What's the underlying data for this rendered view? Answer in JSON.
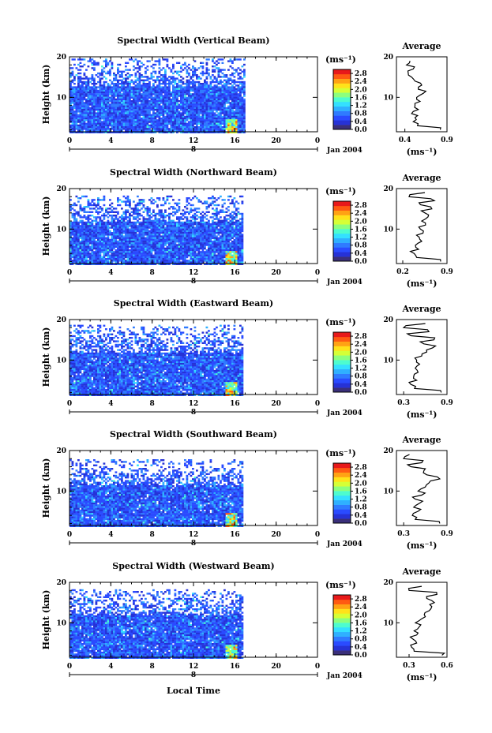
{
  "figure": {
    "xlabel": "Local Time",
    "date_label": "Jan 2004",
    "day_marker": "8"
  },
  "colors": {
    "scale": [
      "#3a2f7a",
      "#2632d6",
      "#2a4bff",
      "#2f7bff",
      "#2fb0ff",
      "#34e0ff",
      "#4dfccf",
      "#8cff7e",
      "#d6ff36",
      "#ffe21a",
      "#ffa214",
      "#ff5a12",
      "#e8191a"
    ],
    "profile_line": "#000000"
  },
  "chart_data": [
    {
      "type": "heatmap",
      "title": "Spectral Width (Vertical Beam)",
      "ylabel": "Height (km)",
      "xlim": [
        0,
        24
      ],
      "ylim": [
        1.5,
        20
      ],
      "xticks": [
        "0",
        "4",
        "8",
        "12",
        "16",
        "20",
        "0"
      ],
      "yticks": [
        "20",
        "10"
      ],
      "data_end_hour": 16.9,
      "echo_top_km": 19.8,
      "colorbar": {
        "unit": "(ms⁻¹)",
        "ticks": [
          "2.8",
          "2.4",
          "2.0",
          "1.6",
          "1.2",
          "0.8",
          "0.4",
          "0.0"
        ],
        "range": [
          0,
          3.0
        ]
      },
      "profile": {
        "title": "Average",
        "xlabel": "(ms⁻¹)",
        "xlim": [
          0.3,
          0.9
        ],
        "xticks": [
          "0.4",
          "0.9"
        ],
        "yticks": [
          "20",
          "10"
        ],
        "heights": [
          2,
          3,
          4,
          5,
          6,
          7,
          8,
          9,
          10,
          11,
          12,
          13,
          14,
          15,
          16,
          17,
          18,
          19
        ],
        "values": [
          0.82,
          0.55,
          0.5,
          0.52,
          0.48,
          0.56,
          0.52,
          0.58,
          0.54,
          0.62,
          0.56,
          0.6,
          0.52,
          0.48,
          0.44,
          0.5,
          0.42,
          0.46
        ]
      }
    },
    {
      "type": "heatmap",
      "title": "Spectral Width (Northward Beam)",
      "ylabel": "Height (km)",
      "xlim": [
        0,
        24
      ],
      "ylim": [
        1.5,
        20
      ],
      "xticks": [
        "0",
        "4",
        "8",
        "12",
        "16",
        "20",
        "0"
      ],
      "yticks": [
        "20",
        "10"
      ],
      "data_end_hour": 16.8,
      "echo_top_km": 18.5,
      "colorbar": {
        "unit": "(ms⁻¹)",
        "ticks": [
          "2.8",
          "2.4",
          "2.0",
          "1.6",
          "1.2",
          "0.8",
          "0.4",
          "0.0"
        ],
        "range": [
          0,
          3.0
        ]
      },
      "profile": {
        "title": "Average",
        "xlabel": "(ms⁻¹)",
        "xlim": [
          0.1,
          0.9
        ],
        "xticks": [
          "0.2",
          "0.9"
        ],
        "yticks": [
          "20",
          "10"
        ],
        "heights": [
          2,
          3,
          4,
          5,
          6,
          7,
          8,
          9,
          10,
          11,
          12,
          13,
          14,
          15,
          16,
          17,
          18,
          19
        ],
        "values": [
          0.8,
          0.42,
          0.38,
          0.45,
          0.4,
          0.5,
          0.46,
          0.52,
          0.48,
          0.56,
          0.5,
          0.6,
          0.55,
          0.66,
          0.48,
          0.7,
          0.3,
          0.55
        ]
      }
    },
    {
      "type": "heatmap",
      "title": "Spectral Width (Eastward Beam)",
      "ylabel": "Height (km)",
      "xlim": [
        0,
        24
      ],
      "ylim": [
        1.5,
        20
      ],
      "xticks": [
        "0",
        "4",
        "8",
        "12",
        "16",
        "20",
        "0"
      ],
      "yticks": [
        "20",
        "10"
      ],
      "data_end_hour": 16.8,
      "echo_top_km": 18.8,
      "colorbar": {
        "unit": "(ms⁻¹)",
        "ticks": [
          "2.8",
          "2.4",
          "2.0",
          "1.6",
          "1.2",
          "0.8",
          "0.4",
          "0.0"
        ],
        "range": [
          0,
          3.0
        ]
      },
      "profile": {
        "title": "Average",
        "xlabel": "(ms⁻¹)",
        "xlim": [
          0.2,
          0.9
        ],
        "xticks": [
          "0.3",
          "0.9"
        ],
        "yticks": [
          "20",
          "10"
        ],
        "heights": [
          2,
          3,
          4,
          5,
          6,
          7,
          8,
          9,
          10,
          11,
          12,
          13,
          14,
          15,
          16,
          17,
          18,
          19
        ],
        "values": [
          0.82,
          0.45,
          0.4,
          0.48,
          0.44,
          0.5,
          0.46,
          0.52,
          0.48,
          0.55,
          0.62,
          0.7,
          0.58,
          0.72,
          0.4,
          0.65,
          0.3,
          0.6
        ]
      }
    },
    {
      "type": "heatmap",
      "title": "Spectral Width (Southward Beam)",
      "ylabel": "Height (km)",
      "xlim": [
        0,
        24
      ],
      "ylim": [
        1.5,
        20
      ],
      "xticks": [
        "0",
        "4",
        "8",
        "12",
        "16",
        "20",
        "0"
      ],
      "yticks": [
        "20",
        "10"
      ],
      "data_end_hour": 16.8,
      "echo_top_km": 18.0,
      "colorbar": {
        "unit": "(ms⁻¹)",
        "ticks": [
          "2.8",
          "2.4",
          "2.0",
          "1.6",
          "1.2",
          "0.8",
          "0.4",
          "0.0"
        ],
        "range": [
          0,
          3.0
        ]
      },
      "profile": {
        "title": "Average",
        "xlabel": "(ms⁻¹)",
        "xlim": [
          0.2,
          0.9
        ],
        "xticks": [
          "0.3",
          "0.9"
        ],
        "yticks": [
          "20",
          "10"
        ],
        "heights": [
          2,
          3,
          4,
          5,
          6,
          7,
          8,
          9,
          10,
          11,
          12,
          13,
          14,
          15,
          16,
          17,
          18,
          19
        ],
        "values": [
          0.8,
          0.46,
          0.42,
          0.5,
          0.44,
          0.52,
          0.46,
          0.55,
          0.5,
          0.6,
          0.65,
          0.8,
          0.62,
          0.58,
          0.4,
          0.55,
          0.3,
          0.38
        ]
      }
    },
    {
      "type": "heatmap",
      "title": "Spectral Width (Westward Beam)",
      "ylabel": "Height (km)",
      "xlim": [
        0,
        24
      ],
      "ylim": [
        1.5,
        20
      ],
      "xticks": [
        "0",
        "4",
        "8",
        "12",
        "16",
        "20",
        "0"
      ],
      "yticks": [
        "20",
        "10"
      ],
      "data_end_hour": 16.8,
      "echo_top_km": 18.5,
      "colorbar": {
        "unit": "(ms⁻¹)",
        "ticks": [
          "2.8",
          "2.4",
          "2.0",
          "1.6",
          "1.2",
          "0.8",
          "0.4",
          "0.0"
        ],
        "range": [
          0,
          3.0
        ]
      },
      "profile": {
        "title": "Average",
        "xlabel": "(ms⁻¹)",
        "xlim": [
          0.2,
          0.6
        ],
        "xticks": [
          "0.3",
          "0.6"
        ],
        "yticks": [
          "20",
          "10"
        ],
        "heights": [
          2,
          3,
          4,
          5,
          6,
          7,
          8,
          9,
          10,
          11,
          12,
          13,
          14,
          15,
          16,
          17,
          18,
          19
        ],
        "values": [
          0.56,
          0.34,
          0.32,
          0.36,
          0.33,
          0.36,
          0.34,
          0.38,
          0.35,
          0.4,
          0.42,
          0.46,
          0.48,
          0.5,
          0.44,
          0.52,
          0.3,
          0.4
        ]
      }
    }
  ]
}
